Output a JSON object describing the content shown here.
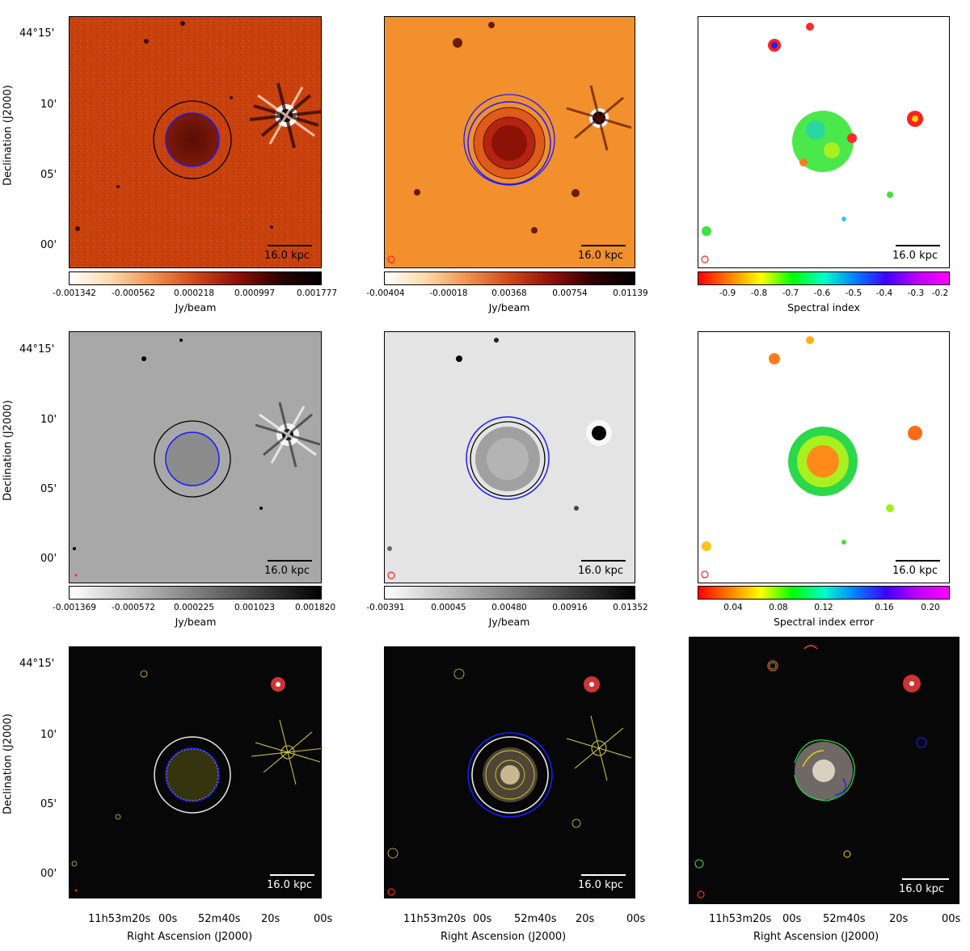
{
  "axes": {
    "dec_label": "Declination (J2000)",
    "ra_label": "Right Ascension (J2000)",
    "dec_ticks": [
      "44°15'",
      "10'",
      "05'",
      "00'"
    ],
    "ra_ticks": [
      "11h53m20s",
      "00s",
      "52m40s",
      "20s",
      "00s"
    ]
  },
  "scale": "16.0 kpc",
  "panels": [
    {
      "row": 0,
      "col": 0,
      "kind": "radio-heat",
      "colorbar": {
        "ticks": [
          "-0.001342",
          "-0.000562",
          "0.000218",
          "0.000997",
          "0.001777"
        ],
        "label": "Jy/beam"
      }
    },
    {
      "row": 0,
      "col": 1,
      "kind": "radio-heat-smooth",
      "colorbar": {
        "ticks": [
          "-0.00404",
          "-0.00018",
          "0.00368",
          "0.00754",
          "0.01139"
        ],
        "label": "Jy/beam"
      }
    },
    {
      "row": 0,
      "col": 2,
      "kind": "spectral-index",
      "colorbar": {
        "ticks": [
          "-0.9",
          "-0.8",
          "-0.7",
          "-0.6",
          "-0.5",
          "-0.4",
          "-0.3",
          "-0.2"
        ],
        "label": "Spectral index"
      }
    },
    {
      "row": 1,
      "col": 0,
      "kind": "radio-gray",
      "colorbar": {
        "ticks": [
          "-0.001369",
          "-0.000572",
          "0.000225",
          "0.001023",
          "0.001820"
        ],
        "label": "Jy/beam"
      }
    },
    {
      "row": 1,
      "col": 1,
      "kind": "radio-gray-smooth",
      "colorbar": {
        "ticks": [
          "-0.00391",
          "0.00045",
          "0.00480",
          "0.00916",
          "0.01352"
        ],
        "label": "Jy/beam"
      }
    },
    {
      "row": 1,
      "col": 2,
      "kind": "spectral-index-error",
      "colorbar": {
        "ticks": [
          "0.04",
          "0.08",
          "0.12",
          "0.16",
          "0.20"
        ],
        "label": "Spectral index error"
      }
    },
    {
      "row": 2,
      "col": 0,
      "kind": "optical-contours-fine"
    },
    {
      "row": 2,
      "col": 1,
      "kind": "optical-contours-smooth"
    },
    {
      "row": 2,
      "col": 2,
      "kind": "optical-spectral"
    }
  ],
  "colors": {
    "blue_circle": "#1a1aff",
    "black_circle": "#000000",
    "white_circle": "#e8e8e8",
    "contour_yellow": "#d8cf3a",
    "beam_red": "#ff2020"
  }
}
